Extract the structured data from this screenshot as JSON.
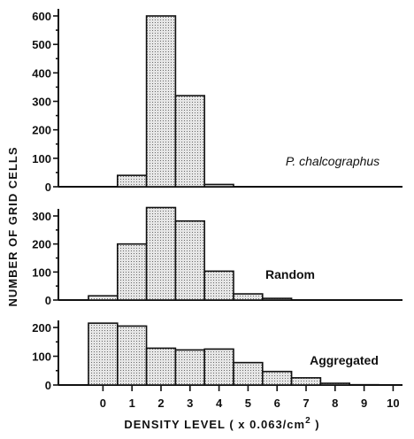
{
  "chart_data": {
    "type": "bar",
    "xlabel": "DENSITY  LEVEL  ( x  0.063/cm",
    "xlabel_superscript": "2",
    "xlabel_close": " )",
    "ylabel": "NUMBER   OF   GRID   CELLS",
    "categories": [
      "0",
      "1",
      "2",
      "3",
      "4",
      "5",
      "6",
      "7",
      "8",
      "9",
      "10"
    ],
    "panels": [
      {
        "label": "P.  chalcographus",
        "label_style": "italic",
        "ylim": [
          0,
          600
        ],
        "yticks": [
          "0",
          "100",
          "200",
          "300",
          "400",
          "500",
          "600"
        ],
        "values": [
          0,
          40,
          600,
          320,
          8,
          0,
          0,
          0,
          0,
          0,
          0
        ]
      },
      {
        "label": "Random",
        "label_style": "bold",
        "ylim": [
          0,
          300
        ],
        "yticks": [
          "0",
          "100",
          "200",
          "300"
        ],
        "values": [
          15,
          200,
          330,
          282,
          103,
          22,
          6,
          0,
          0,
          0,
          0
        ]
      },
      {
        "label": "Aggregated",
        "label_style": "bold",
        "ylim": [
          0,
          200
        ],
        "yticks": [
          "0",
          "100",
          "200"
        ],
        "values": [
          215,
          205,
          128,
          122,
          125,
          78,
          47,
          25,
          6,
          1,
          0
        ]
      }
    ]
  }
}
